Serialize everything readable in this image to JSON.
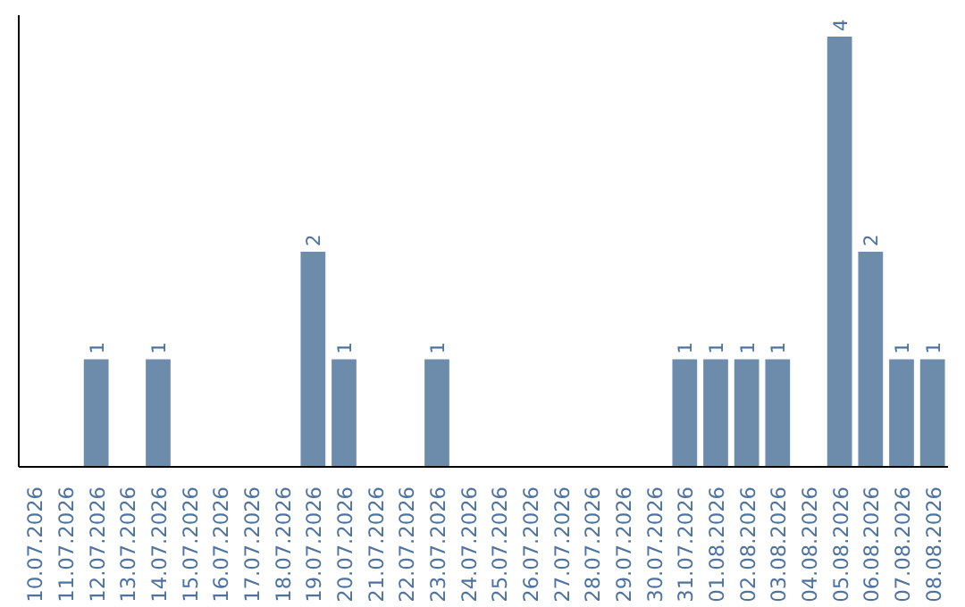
{
  "chart_data": {
    "type": "bar",
    "categories": [
      "10.07.2026",
      "11.07.2026",
      "12.07.2026",
      "13.07.2026",
      "14.07.2026",
      "15.07.2026",
      "16.07.2026",
      "17.07.2026",
      "18.07.2026",
      "19.07.2026",
      "20.07.2026",
      "21.07.2026",
      "22.07.2026",
      "23.07.2026",
      "24.07.2026",
      "25.07.2026",
      "26.07.2026",
      "27.07.2026",
      "28.07.2026",
      "29.07.2026",
      "30.07.2026",
      "31.07.2026",
      "01.08.2026",
      "02.08.2026",
      "03.08.2026",
      "04.08.2026",
      "05.08.2026",
      "06.08.2026",
      "07.08.2026",
      "08.08.2026"
    ],
    "values": [
      0,
      0,
      1,
      0,
      1,
      0,
      0,
      0,
      0,
      2,
      1,
      0,
      0,
      1,
      0,
      0,
      0,
      0,
      0,
      0,
      0,
      1,
      1,
      1,
      1,
      0,
      4,
      2,
      1,
      1
    ],
    "value_labels": [
      null,
      null,
      "1",
      null,
      "1",
      null,
      null,
      null,
      null,
      "2",
      "1",
      null,
      null,
      "1",
      null,
      null,
      null,
      null,
      null,
      null,
      null,
      "1",
      "1",
      "1",
      "1",
      null,
      "4",
      "2",
      "1",
      "1"
    ],
    "color": "#6d8cab",
    "ylim": [
      0,
      4.2
    ],
    "tick_labels": "x",
    "grid": false
  }
}
